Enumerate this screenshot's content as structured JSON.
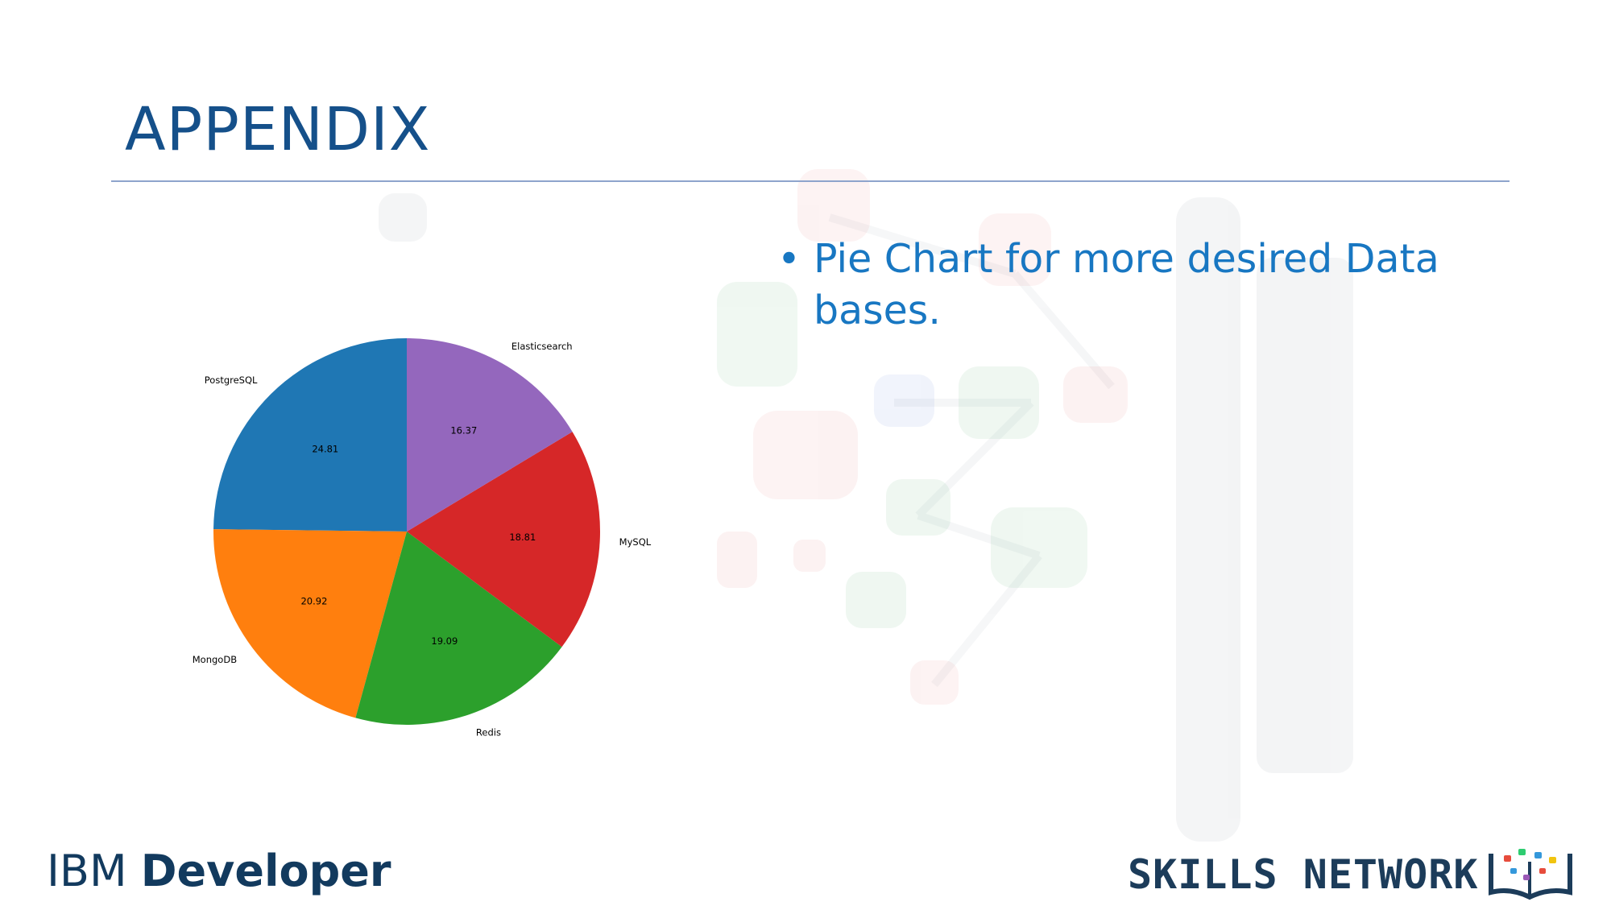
{
  "slide": {
    "title": "APPENDIX",
    "bullets": [
      "Pie Chart for more desired Data bases."
    ]
  },
  "footer": {
    "left_logo_regular": "IBM ",
    "left_logo_bold": "Developer",
    "right_logo": "SKILLS NETWORK",
    "book_icon": "book-network-icon"
  },
  "chart_data": {
    "type": "pie",
    "title": "",
    "start_angle": 90,
    "direction": "counterclockwise",
    "colors": [
      "#1f77b4",
      "#ff7f0e",
      "#2ca02c",
      "#d62728",
      "#9467bd"
    ],
    "slices": [
      {
        "label": "PostgreSQL",
        "value": 24.81,
        "value_label": "24.81"
      },
      {
        "label": "MongoDB",
        "value": 20.92,
        "value_label": "20.92"
      },
      {
        "label": "Redis",
        "value": 19.09,
        "value_label": "19.09"
      },
      {
        "label": "MySQL",
        "value": 18.81,
        "value_label": "18.81"
      },
      {
        "label": "Elasticsearch",
        "value": 16.37,
        "value_label": "16.37"
      }
    ]
  }
}
